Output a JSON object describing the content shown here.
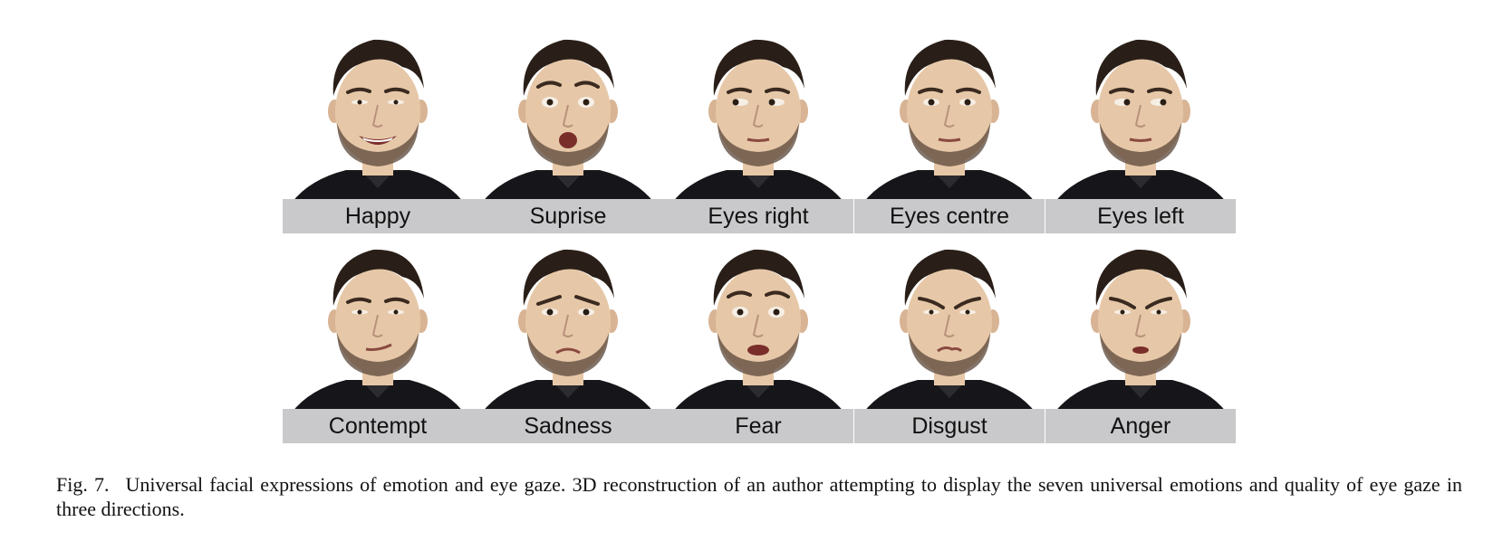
{
  "figure": {
    "panels": [
      {
        "label": "Happy",
        "expression": "happy"
      },
      {
        "label": "Suprise",
        "expression": "surprise"
      },
      {
        "label": "Eyes right",
        "expression": "eyes-right"
      },
      {
        "label": "Eyes centre",
        "expression": "eyes-centre"
      },
      {
        "label": "Eyes left",
        "expression": "eyes-left"
      },
      {
        "label": "Contempt",
        "expression": "contempt"
      },
      {
        "label": "Sadness",
        "expression": "sadness"
      },
      {
        "label": "Fear",
        "expression": "fear"
      },
      {
        "label": "Disgust",
        "expression": "disgust"
      },
      {
        "label": "Anger",
        "expression": "anger"
      }
    ],
    "caption_label": "Fig. 7.",
    "caption_text": "Universal facial expressions of emotion and eye gaze. 3D reconstruction of an author attempting to display the seven universal emotions and quality of eye gaze in three directions."
  },
  "colors": {
    "skin": "#e6c8a8",
    "hair": "#2a1f18",
    "beard": "#5a4538",
    "shirt": "#16161a",
    "label_bg": "#c9c9cb"
  }
}
